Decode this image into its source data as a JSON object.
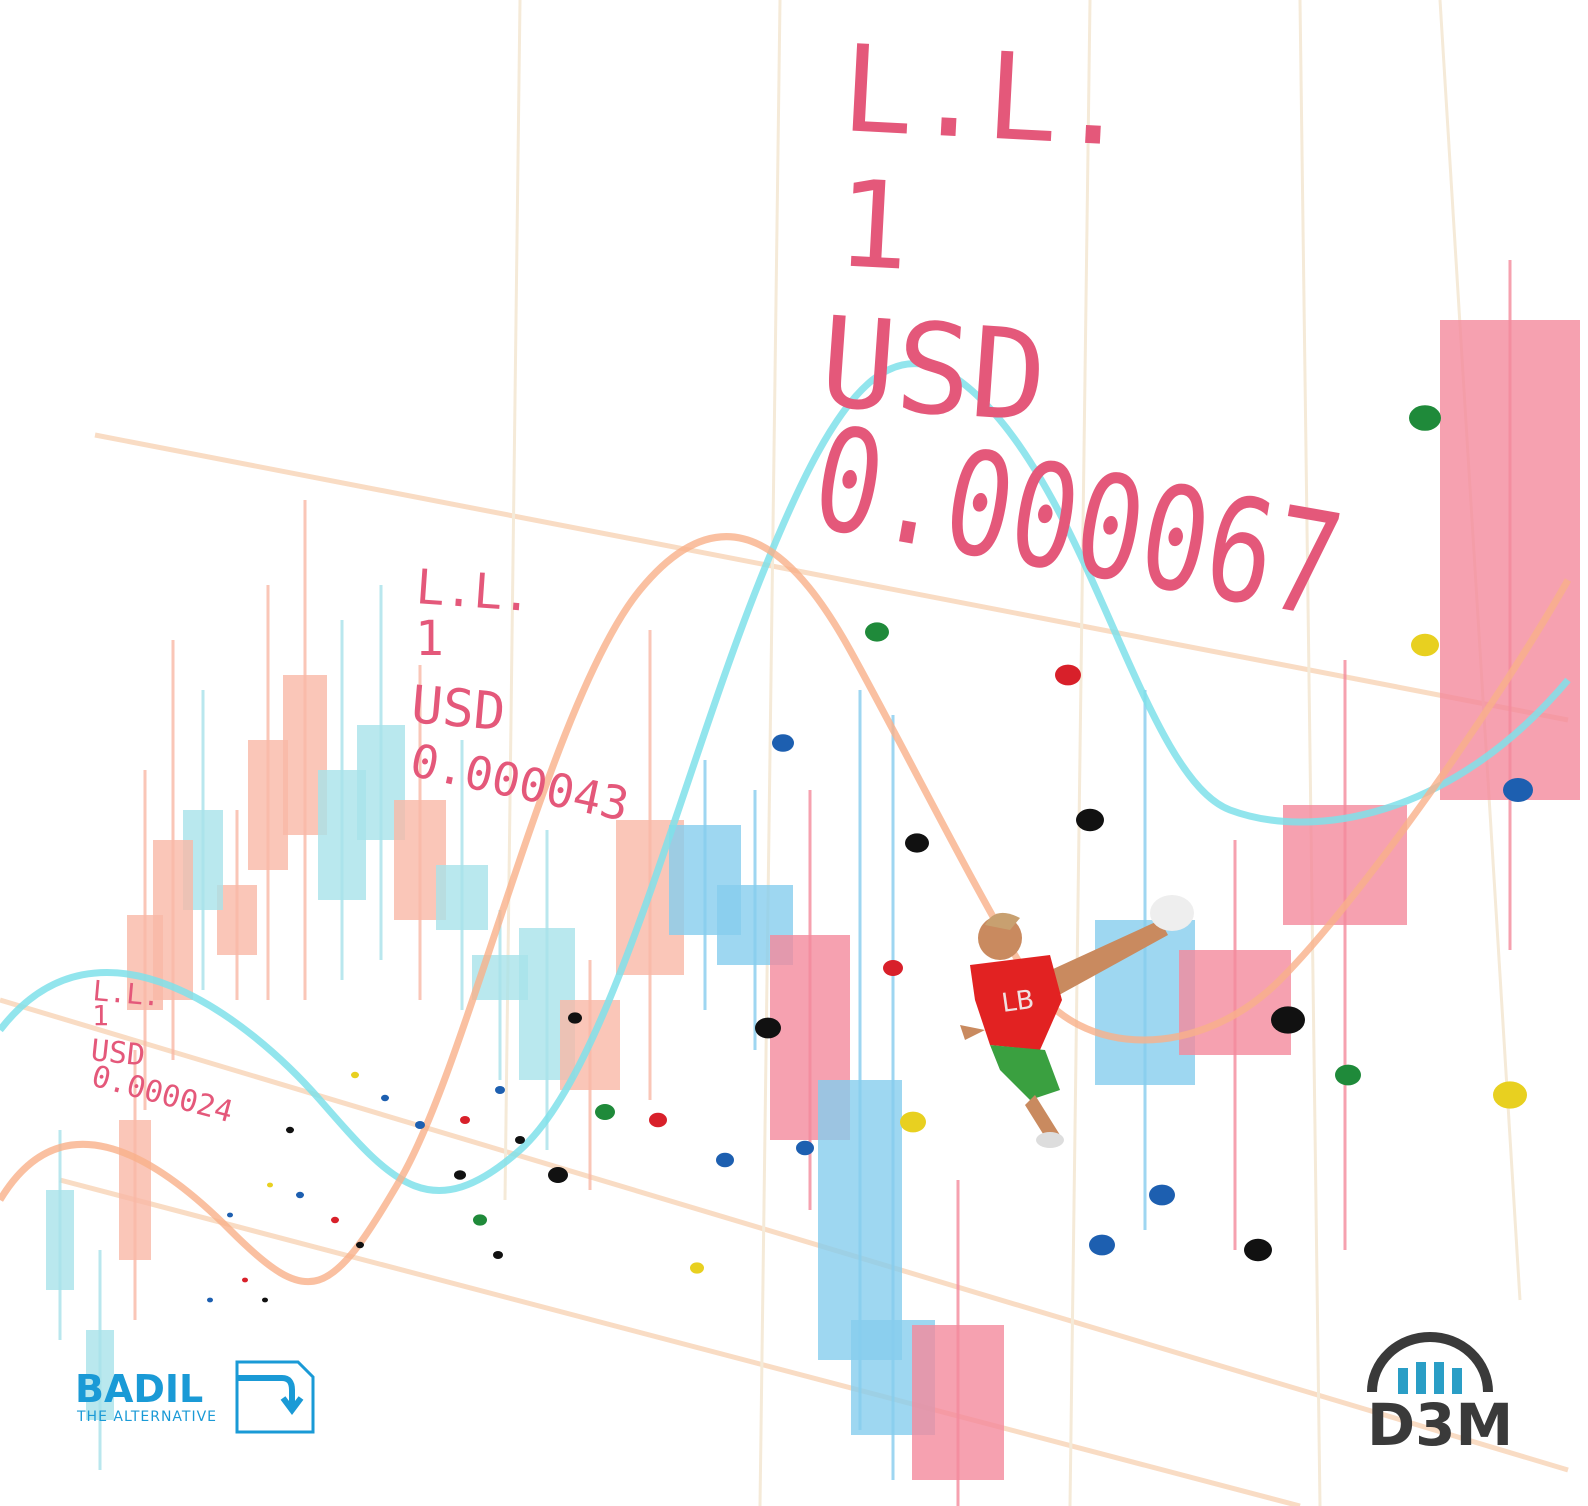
{
  "labels": [
    {
      "unit": "L.L.",
      "amount": "1",
      "currency": "USD",
      "rate": "0.000067"
    },
    {
      "unit": "L.L.",
      "amount": "1",
      "currency": "USD",
      "rate": "0.000043"
    },
    {
      "unit": "L.L.",
      "amount": "1",
      "currency": "USD",
      "rate": "0.000024"
    }
  ],
  "climber": {
    "shirt": "LB"
  },
  "logos": {
    "badil": {
      "name": "BADIL",
      "tagline": "THE ALTERNATIVE"
    },
    "d3m": {
      "name": "D3M"
    }
  }
}
